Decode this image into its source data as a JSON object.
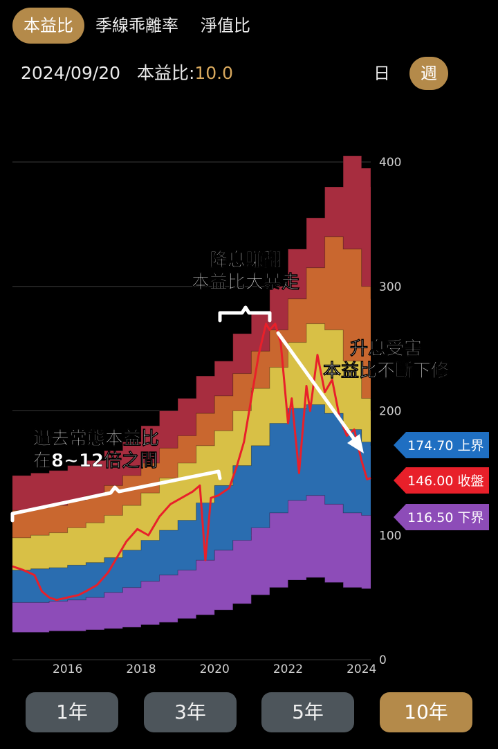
{
  "tabs": [
    "本益比",
    "季線乖離率",
    "淨值比"
  ],
  "active_tab": 0,
  "header": {
    "date": "2024/09/20",
    "metric_label": "本益比:",
    "metric_value": "10.0"
  },
  "period": {
    "options": [
      "日",
      "週"
    ],
    "active": 1
  },
  "ranges": [
    "1年",
    "3年",
    "5年",
    "10年"
  ],
  "active_range": 3,
  "colors": {
    "band_top": "#a72d3f",
    "band_orange": "#c9672f",
    "band_yellow": "#d8c046",
    "band_blue": "#2a6db0",
    "band_purple": "#8d4cb8",
    "price": "#e8202a",
    "grid": "#3a3a3a",
    "accent": "#b48a4a"
  },
  "chart_data": {
    "type": "area",
    "x_ticks": [
      "2016",
      "2018",
      "2020",
      "2022",
      "2024"
    ],
    "y_ticks": [
      "0",
      "100",
      "200",
      "300",
      "400"
    ],
    "ylim": [
      0,
      400
    ],
    "xlim": [
      2015.0,
      2024.75
    ],
    "bands_x": [
      2015.0,
      2015.5,
      2016.0,
      2016.5,
      2017.0,
      2017.5,
      2018.0,
      2018.5,
      2019.0,
      2019.5,
      2020.0,
      2020.5,
      2021.0,
      2021.5,
      2022.0,
      2022.5,
      2023.0,
      2023.5,
      2024.0,
      2024.5,
      2024.75
    ],
    "series": [
      {
        "name": "",
        "values": [
          148,
          150,
          152,
          156,
          160,
          168,
          175,
          188,
          200,
          210,
          228,
          240,
          262,
          280,
          300,
          330,
          355,
          380,
          405,
          395,
          380
        ]
      },
      {
        "name": "",
        "values": [
          120,
          122,
          124,
          128,
          132,
          140,
          148,
          158,
          170,
          180,
          198,
          212,
          230,
          248,
          265,
          290,
          315,
          340,
          330,
          300,
          290
        ]
      },
      {
        "name": "",
        "values": [
          98,
          100,
          102,
          106,
          110,
          116,
          124,
          134,
          146,
          158,
          172,
          184,
          200,
          218,
          235,
          255,
          270,
          265,
          240,
          210,
          200
        ]
      },
      {
        "name": "",
        "values": [
          72,
          73,
          74,
          76,
          78,
          82,
          88,
          96,
          104,
          112,
          126,
          140,
          156,
          172,
          190,
          202,
          205,
          198,
          185,
          175,
          172
        ]
      },
      {
        "name": "",
        "values": [
          46,
          46,
          47,
          48,
          50,
          54,
          58,
          63,
          68,
          72,
          80,
          88,
          96,
          106,
          118,
          128,
          132,
          125,
          118,
          116,
          116
        ]
      },
      {
        "name": "",
        "values": [
          22,
          22,
          23,
          23,
          24,
          25,
          26,
          28,
          30,
          33,
          36,
          40,
          45,
          52,
          58,
          64,
          66,
          62,
          58,
          57,
          57
        ]
      }
    ],
    "price_x": [
      2015.0,
      2015.3,
      2015.6,
      2015.8,
      2016.0,
      2016.2,
      2016.5,
      2016.8,
      2017.0,
      2017.3,
      2017.6,
      2017.9,
      2018.1,
      2018.4,
      2018.7,
      2019.0,
      2019.3,
      2019.6,
      2019.9,
      2020.1,
      2020.25,
      2020.4,
      2020.6,
      2020.9,
      2021.1,
      2021.3,
      2021.5,
      2021.7,
      2021.9,
      2022.0,
      2022.15,
      2022.3,
      2022.5,
      2022.6,
      2022.8,
      2023.0,
      2023.1,
      2023.3,
      2023.5,
      2023.7,
      2023.9,
      2024.1,
      2024.3,
      2024.5,
      2024.65,
      2024.75
    ],
    "price_values": [
      75,
      72,
      68,
      55,
      50,
      48,
      50,
      52,
      55,
      60,
      70,
      85,
      95,
      105,
      100,
      115,
      125,
      130,
      135,
      140,
      80,
      130,
      132,
      138,
      155,
      175,
      210,
      245,
      270,
      265,
      270,
      255,
      190,
      210,
      150,
      220,
      200,
      245,
      215,
      225,
      195,
      180,
      185,
      160,
      145,
      146
    ],
    "price_series_name": "收盤",
    "markers": [
      {
        "label": "174.70 上界",
        "value": 174.7,
        "color": "#1f6fc2"
      },
      {
        "label": "146.00 收盤",
        "value": 146.0,
        "color": "#e8202a"
      },
      {
        "label": "116.50 下界",
        "value": 116.5,
        "color": "#8d4cb8"
      }
    ],
    "annotations": [
      {
        "lines": [
          "過去常態本益比",
          "在8~12倍之間"
        ]
      },
      {
        "lines": [
          "降息賺翻",
          "本益比大暴走"
        ]
      },
      {
        "lines": [
          "升息受害",
          "本益比不斷下修"
        ]
      }
    ]
  }
}
